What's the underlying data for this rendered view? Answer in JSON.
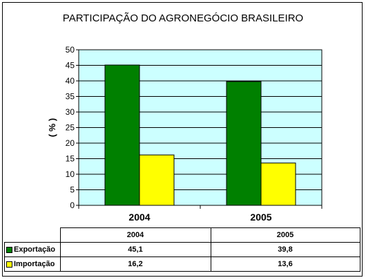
{
  "chart_data": {
    "type": "bar",
    "title": "PARTICIPAÇÃO DO AGRONEGÓCIO BRASILEIRO",
    "ylabel": "( % )",
    "xlabel": "",
    "categories": [
      "2004",
      "2005"
    ],
    "ylim": [
      0,
      50
    ],
    "yticks": [
      0,
      5,
      10,
      15,
      20,
      25,
      30,
      35,
      40,
      45,
      50
    ],
    "grid": true,
    "plot_background": "#ccffff",
    "series": [
      {
        "name": "Exportação",
        "values": [
          45.1,
          39.8
        ],
        "color": "#008000"
      },
      {
        "name": "Importação",
        "values": [
          16.2,
          13.6
        ],
        "color": "#ffff00"
      }
    ],
    "table": {
      "header": [
        "2004",
        "2005"
      ],
      "rows": [
        {
          "label": "Exportação",
          "cells": [
            "45,1",
            "39,8"
          ],
          "color": "#008000"
        },
        {
          "label": "Importação",
          "cells": [
            "16,2",
            "13,6"
          ],
          "color": "#ffff00"
        }
      ]
    }
  }
}
